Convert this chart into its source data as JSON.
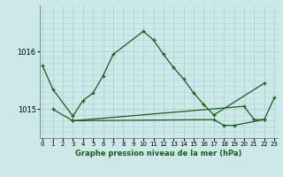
{
  "title": "Graphe pression niveau de la mer (hPa)",
  "background_color": "#cce8e8",
  "grid_color": "#aad4d4",
  "line_color": "#1a5c1a",
  "x_ticks": [
    0,
    1,
    2,
    3,
    4,
    5,
    6,
    7,
    8,
    9,
    10,
    11,
    12,
    13,
    14,
    15,
    16,
    17,
    18,
    19,
    20,
    21,
    22,
    23
  ],
  "y_ticks": [
    1015,
    1016
  ],
  "ylim": [
    1014.5,
    1016.8
  ],
  "xlim": [
    -0.3,
    23.3
  ],
  "line1_x": [
    0,
    1,
    3,
    4,
    5,
    6,
    7,
    10,
    11,
    12,
    13,
    14,
    15,
    16,
    17,
    22
  ],
  "line1_y": [
    1015.75,
    1015.35,
    1014.88,
    1015.15,
    1015.28,
    1015.58,
    1015.95,
    1016.35,
    1016.2,
    1015.95,
    1015.72,
    1015.52,
    1015.28,
    1015.08,
    1014.9,
    1015.45
  ],
  "line2_x": [
    1,
    3,
    17,
    18,
    19,
    22,
    23
  ],
  "line2_y": [
    1015.0,
    1014.8,
    1014.82,
    1014.72,
    1014.72,
    1014.82,
    1015.2
  ],
  "line3_x": [
    3,
    20,
    21,
    22
  ],
  "line3_y": [
    1014.8,
    1015.05,
    1014.82,
    1014.82
  ],
  "ylabel_1015_pos": 1015.0,
  "ylabel_1016_pos": 1016.0
}
